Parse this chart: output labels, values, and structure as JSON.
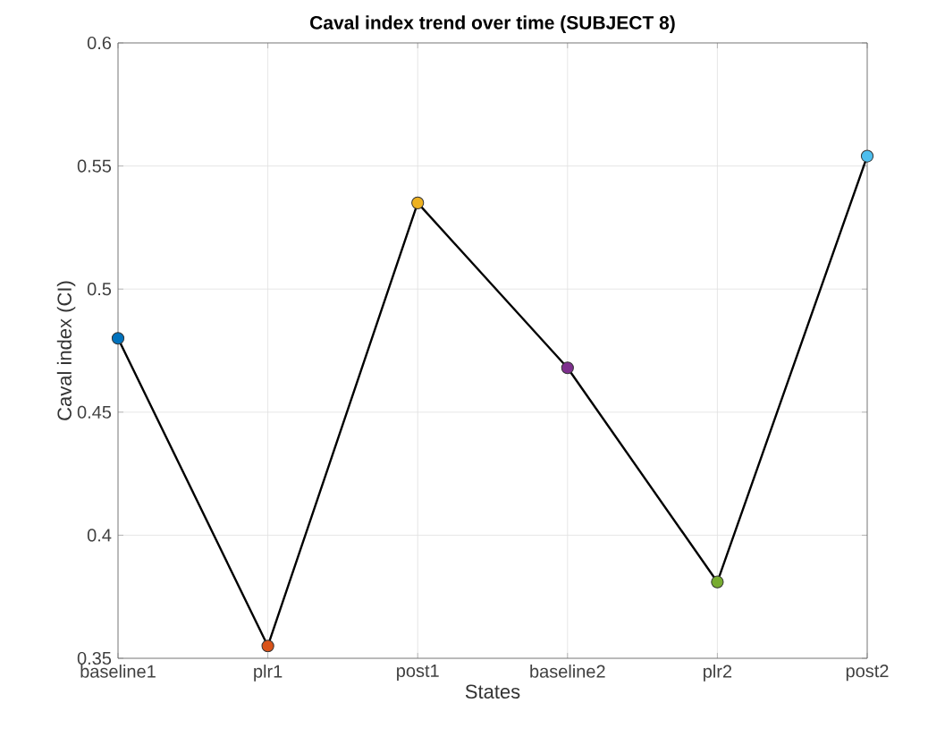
{
  "chart_data": {
    "type": "line",
    "title": "Caval index trend over time (SUBJECT 8)",
    "xlabel": "States",
    "ylabel": "Caval index (CI)",
    "categories": [
      "baseline1",
      "plr1",
      "post1",
      "baseline2",
      "plr2",
      "post2"
    ],
    "values": [
      0.48,
      0.355,
      0.535,
      0.468,
      0.381,
      0.554
    ],
    "color": "#000000",
    "colors": [
      "#0072bd",
      "#d95319",
      "#edb120",
      "#7e2f8e",
      "#77ac30",
      "#4dbeee"
    ],
    "marker": "circle",
    "line_style": "solid",
    "ylim": [
      0.35,
      0.6
    ],
    "yticks": [
      0.35,
      0.4,
      0.45,
      0.5,
      0.55,
      0.6
    ],
    "grid": true
  }
}
